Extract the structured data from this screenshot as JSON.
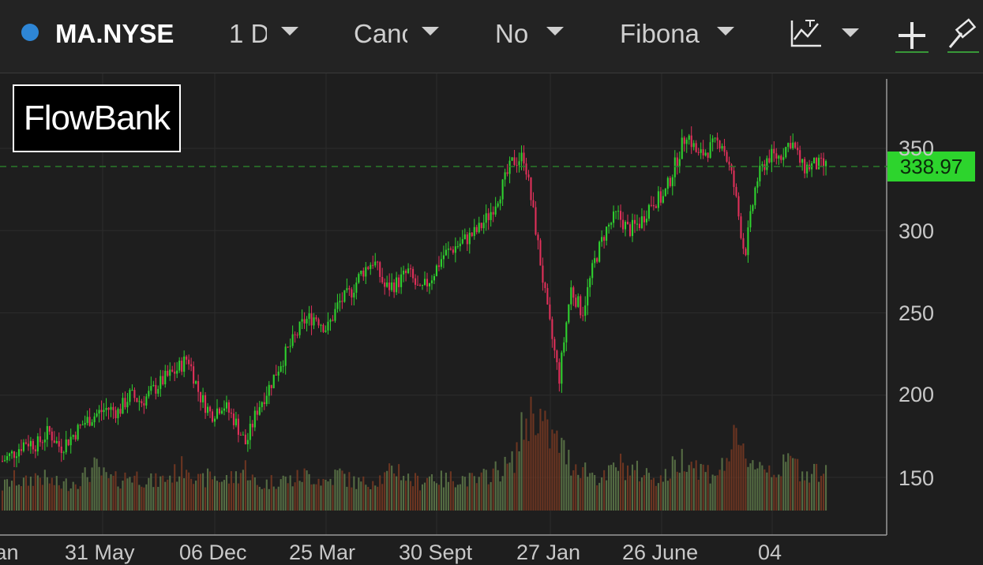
{
  "toolbar": {
    "symbol": "MA.NYSE",
    "interval": "1 D",
    "chart_type": "Canc",
    "compare": "No",
    "drawing_tool": "Fibona",
    "indicator_icon": "line-chart-icon",
    "add_icon": "plus-icon",
    "tools_icon": "hammer-icon"
  },
  "logo": {
    "part1": "Flow",
    "part2": "Bank"
  },
  "colors": {
    "up": "#2fd12f",
    "down": "#e0305a",
    "background": "#1e1e1e",
    "price_tag": "#2dd42d",
    "status_dot": "#2e86d6"
  },
  "chart_data": {
    "type": "candlestick",
    "last_price": "338.97",
    "y_ticks": [
      "350",
      "300",
      "250",
      "200",
      "150"
    ],
    "x_ticks": [
      "Jan",
      "31 May",
      "06 Dec",
      "25 Mar",
      "30 Sept",
      "27 Jan",
      "26 June",
      "04"
    ],
    "ylim": [
      130,
      380
    ],
    "grid": true,
    "series": [
      {
        "name": "",
        "values": [
          160,
          165,
          172,
          170,
          178,
          168,
          175,
          183,
          188,
          192,
          190,
          200,
          196,
          203,
          210,
          215,
          223,
          200,
          188,
          195,
          185,
          170,
          192,
          205,
          220,
          232,
          245,
          248,
          240,
          256,
          262,
          275,
          282,
          265,
          268,
          275,
          262,
          272,
          285,
          290,
          295,
          300,
          310,
          325,
          342,
          345,
          300,
          250,
          210,
          265,
          250,
          280,
          300,
          310,
          300,
          305,
          318,
          320,
          340,
          360,
          345,
          350,
          355,
          330,
          285,
          330,
          345,
          345,
          355,
          338,
          340,
          338.97
        ]
      }
    ],
    "volume": {
      "name": "",
      "values": [
        30,
        40,
        35,
        45,
        38,
        32,
        36,
        42,
        55,
        40,
        38,
        45,
        42,
        36,
        40,
        48,
        60,
        35,
        45,
        38,
        42,
        55,
        30,
        36,
        40,
        38,
        45,
        42,
        36,
        48,
        38,
        34,
        40,
        42,
        55,
        40,
        36,
        45,
        38,
        42,
        40,
        36,
        48,
        52,
        60,
        110,
        130,
        95,
        85,
        60,
        55,
        45,
        40,
        60,
        52,
        48,
        45,
        40,
        58,
        70,
        55,
        48,
        52,
        85,
        70,
        60,
        55,
        50,
        65,
        48,
        52,
        45
      ]
    }
  }
}
